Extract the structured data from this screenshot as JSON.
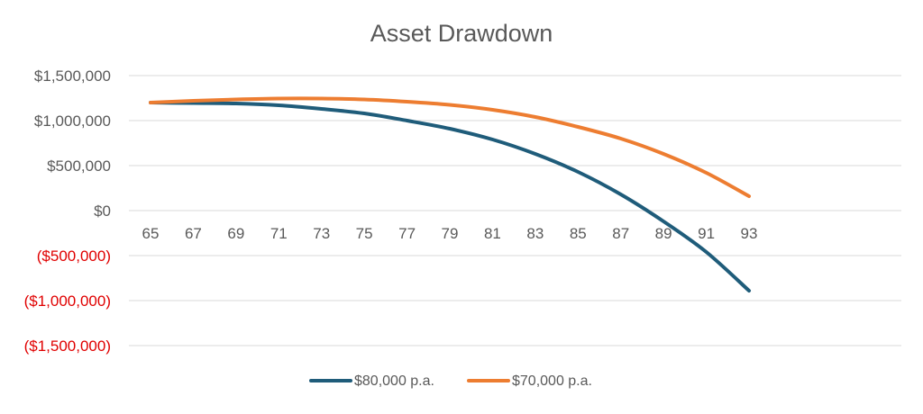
{
  "chart_data": {
    "type": "line",
    "title": "Asset Drawdown",
    "xlabel": "",
    "ylabel": "",
    "x": [
      65,
      67,
      69,
      71,
      73,
      75,
      77,
      79,
      81,
      83,
      85,
      87,
      89,
      91,
      93
    ],
    "x_tick_labels": [
      "65",
      "67",
      "69",
      "71",
      "73",
      "75",
      "77",
      "79",
      "81",
      "83",
      "85",
      "87",
      "89",
      "91",
      "93"
    ],
    "ylim": [
      -1500000,
      1500000
    ],
    "y_ticks": [
      1500000,
      1000000,
      500000,
      0,
      -500000,
      -1000000,
      -1500000
    ],
    "y_tick_labels": [
      "$1,500,000",
      "$1,000,000",
      "$500,000",
      "$0",
      "($500,000)",
      "($1,000,000)",
      "($1,500,000)"
    ],
    "negative_tick_color": "#e00000",
    "grid": true,
    "legend_position": "bottom",
    "series": [
      {
        "name": "$80,000 p.a.",
        "color": "#1f5c7a",
        "values": [
          1200000,
          1195000,
          1190000,
          1170000,
          1130000,
          1080000,
          1000000,
          910000,
          790000,
          630000,
          430000,
          180000,
          -120000,
          -460000,
          -890000
        ]
      },
      {
        "name": "$70,000 p.a.",
        "color": "#ed7d31",
        "values": [
          1200000,
          1220000,
          1235000,
          1245000,
          1245000,
          1235000,
          1210000,
          1175000,
          1120000,
          1040000,
          930000,
          800000,
          630000,
          420000,
          160000
        ]
      }
    ]
  }
}
